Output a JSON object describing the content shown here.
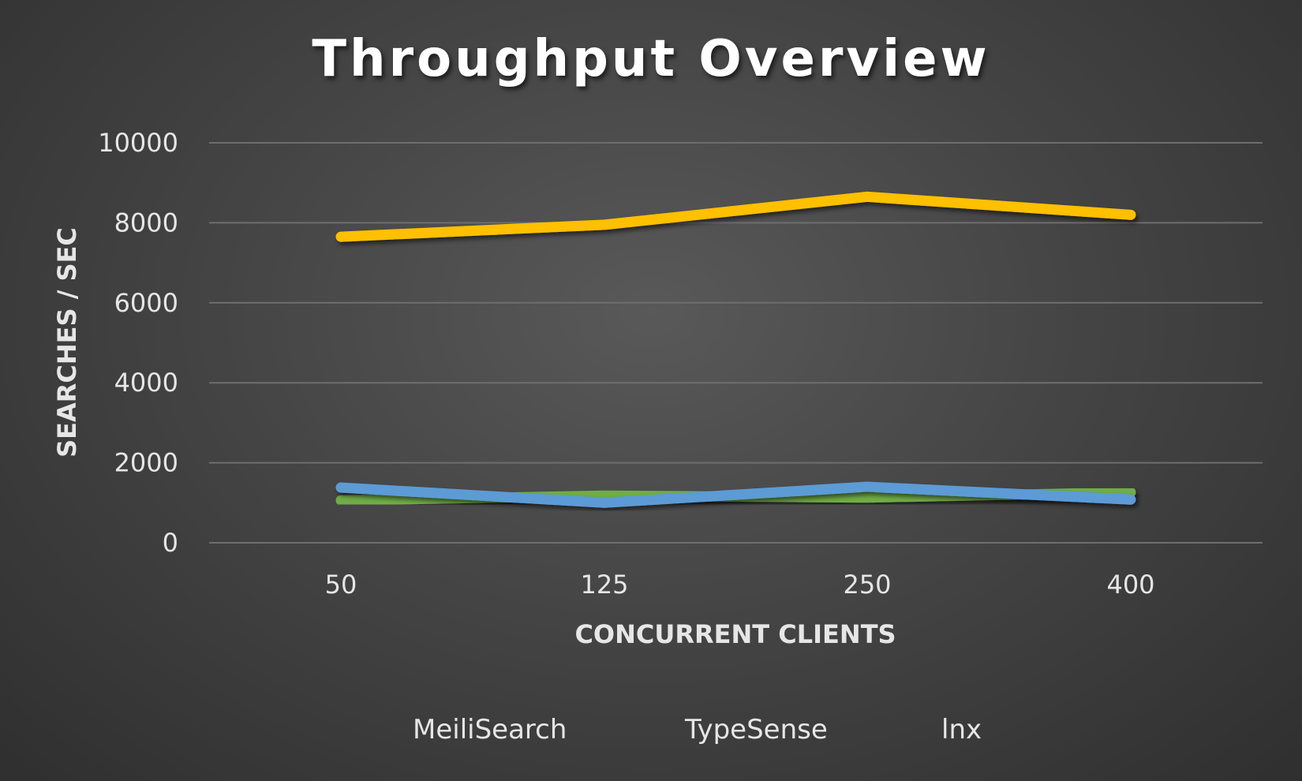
{
  "chart_data": {
    "type": "line",
    "title": "Throughput Overview",
    "xlabel": "CONCURRENT CLIENTS",
    "ylabel": "SEARCHES / SEC",
    "categories": [
      "50",
      "125",
      "250",
      "400"
    ],
    "ylim": [
      0,
      10000
    ],
    "yticks": [
      0,
      2000,
      4000,
      6000,
      8000,
      10000
    ],
    "grid": true,
    "legend_position": "bottom",
    "series": [
      {
        "name": "MeiliSearch",
        "color": "#70ad47",
        "values": [
          1060,
          1180,
          1130,
          1260
        ]
      },
      {
        "name": "TypeSense",
        "color": "#5b9bd5",
        "values": [
          1380,
          1000,
          1400,
          1080
        ]
      },
      {
        "name": "lnx",
        "color": "#ffc000",
        "values": [
          7650,
          7950,
          8650,
          8200
        ]
      }
    ]
  }
}
